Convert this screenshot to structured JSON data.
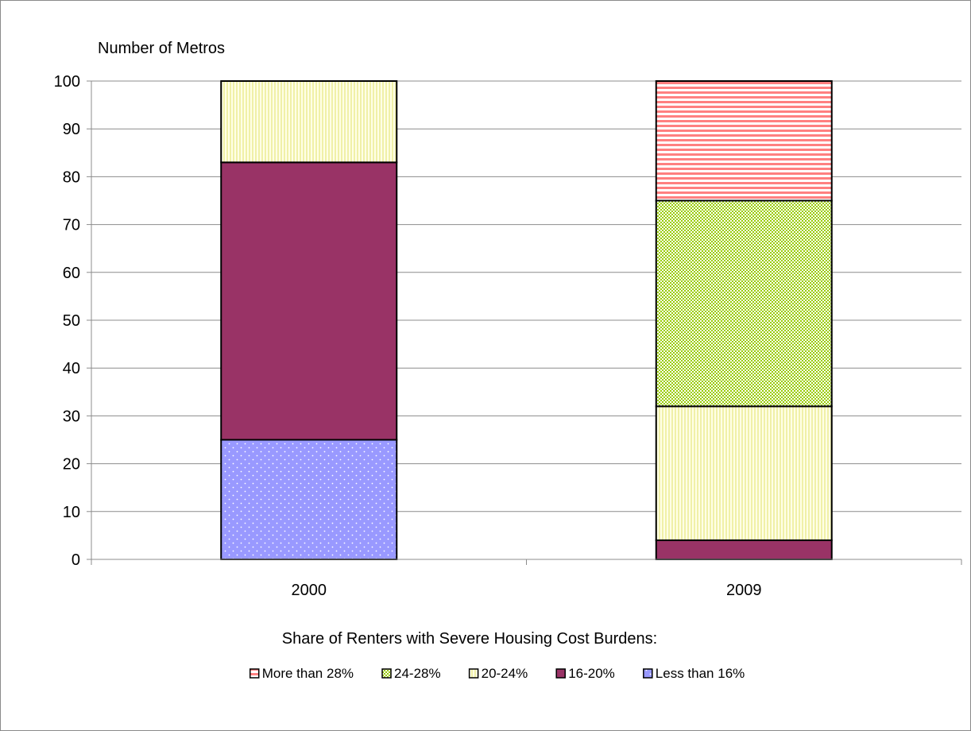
{
  "chart_data": {
    "type": "bar",
    "stacked": true,
    "ylabel": "Number of Metros",
    "xlabel": "",
    "categories": [
      "2000",
      "2009"
    ],
    "ylim": [
      0,
      100
    ],
    "yticks": [
      0,
      10,
      20,
      30,
      40,
      50,
      60,
      70,
      80,
      90,
      100
    ],
    "grid": true,
    "legend_title": "Share of Renters with Severe Housing Cost Burdens:",
    "legend_position": "bottom",
    "series": [
      {
        "name": "More than 28%",
        "values": [
          0,
          25
        ],
        "color": "#ff8080",
        "pattern": "horizontal-stripes"
      },
      {
        "name": "24-28%",
        "values": [
          0,
          43
        ],
        "color": "#99cc00",
        "pattern": "checker"
      },
      {
        "name": "20-24%",
        "values": [
          17,
          28
        ],
        "color": "#ffffcc",
        "pattern": "vertical-stripes"
      },
      {
        "name": "16-20%",
        "values": [
          58,
          4
        ],
        "color": "#993366",
        "pattern": "solid"
      },
      {
        "name": "Less than 16%",
        "values": [
          25,
          0
        ],
        "color": "#9999ff",
        "pattern": "dots"
      }
    ]
  }
}
